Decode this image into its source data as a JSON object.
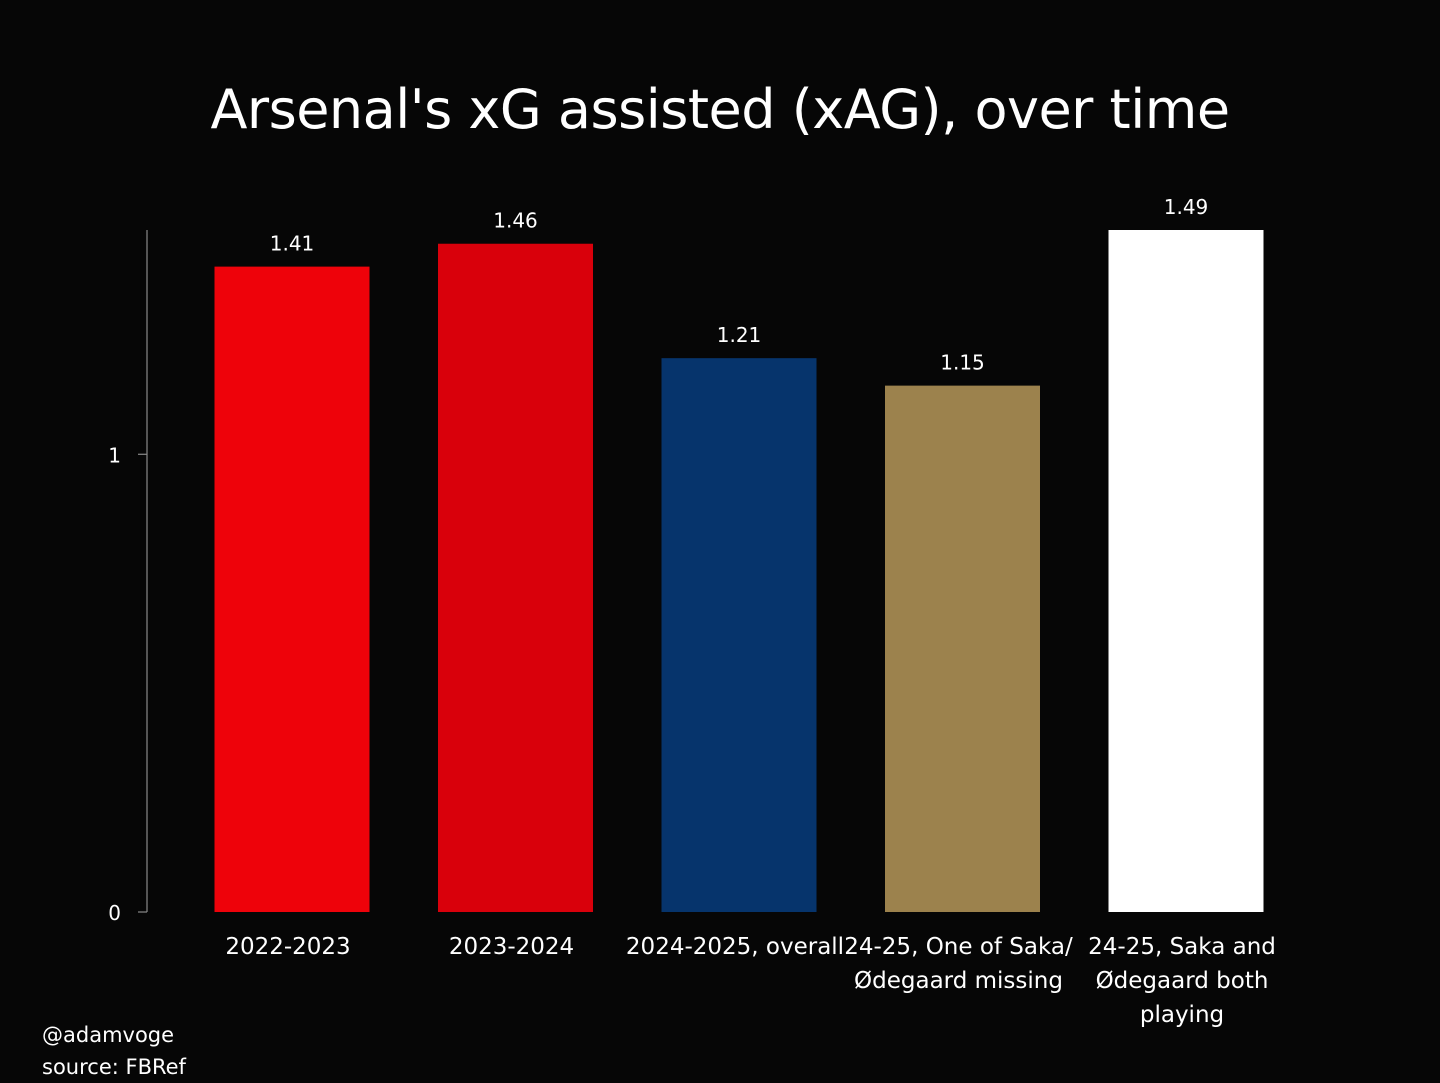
{
  "chart_data": {
    "type": "bar",
    "title": "Arsenal's xG assisted (xAG), over time",
    "xlabel": "",
    "ylabel": "",
    "ylim": [
      0,
      1.49
    ],
    "yticks": [
      0,
      1
    ],
    "grid": false,
    "categories": [
      [
        "2022-2023"
      ],
      [
        "2023-2024"
      ],
      [
        "2024-2025, overall"
      ],
      [
        "24-25, One of Saka/",
        "Ødegaard missing"
      ],
      [
        "24-25, Saka and",
        "Ødegaard both",
        "playing"
      ]
    ],
    "values": [
      1.41,
      1.46,
      1.21,
      1.15,
      1.49
    ],
    "value_labels": [
      "1.41",
      "1.46",
      "1.21",
      "1.15",
      "1.49"
    ],
    "colors": [
      "#EE020A",
      "#D9000B",
      "#06346C",
      "#9C824D",
      "#FFFFFF"
    ]
  },
  "footer": {
    "credit": "@adamvoge",
    "source": "source: FBRef"
  }
}
